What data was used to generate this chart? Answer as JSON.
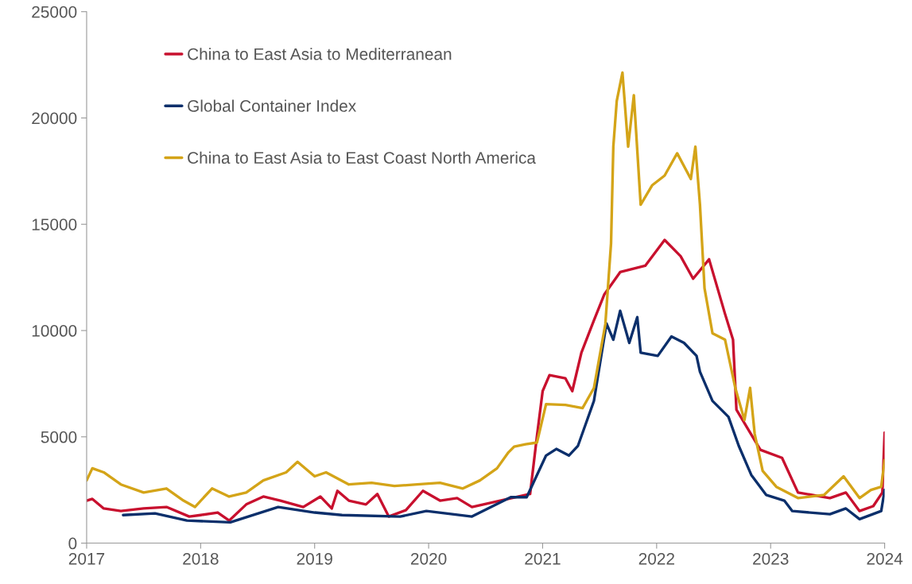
{
  "chart_data": {
    "type": "line",
    "xlim": [
      2017,
      2024
    ],
    "xticks": [
      2017,
      2018,
      2019,
      2020,
      2021,
      2022,
      2023,
      2024
    ],
    "ylim": [
      0,
      25000
    ],
    "yticks": [
      0,
      5000,
      10000,
      15000,
      20000,
      25000
    ],
    "grid": false,
    "legend": "top left",
    "marker": "none",
    "line_style": "solid",
    "series": [
      {
        "name": "China to East Asia to Mediterranean",
        "color": "#c8102e",
        "x": [
          2017.0,
          2017.05,
          2017.15,
          2017.3,
          2017.5,
          2017.7,
          2017.9,
          2018.0,
          2018.15,
          2018.25,
          2018.4,
          2018.55,
          2018.7,
          2018.9,
          2019.05,
          2019.15,
          2019.2,
          2019.3,
          2019.45,
          2019.55,
          2019.65,
          2019.8,
          2019.95,
          2020.1,
          2020.25,
          2020.38,
          2020.89,
          2020.95,
          2021.0,
          2021.06,
          2021.2,
          2021.26,
          2021.34,
          2021.45,
          2021.54,
          2021.68,
          2021.9,
          2022.07,
          2022.21,
          2022.32,
          2022.46,
          2022.6,
          2022.67,
          2022.7,
          2022.91,
          2023.1,
          2023.24,
          2023.52,
          2023.66,
          2023.78,
          2023.9,
          2023.98,
          2024.0
        ],
        "values": [
          2000,
          2080,
          1630,
          1510,
          1630,
          1700,
          1250,
          1320,
          1440,
          1060,
          1820,
          2190,
          2000,
          1700,
          2190,
          1630,
          2460,
          2000,
          1820,
          2310,
          1250,
          1550,
          2460,
          2000,
          2120,
          1700,
          2310,
          5030,
          7150,
          7900,
          7750,
          7150,
          8960,
          10480,
          11690,
          12750,
          13050,
          14260,
          13500,
          12440,
          13350,
          10780,
          9570,
          6280,
          4390,
          4010,
          2380,
          2120,
          2380,
          1510,
          1740,
          2380,
          5200
        ]
      },
      {
        "name": "Global Container Index",
        "color": "#0b2f6b",
        "x": [
          2017.32,
          2017.6,
          2017.88,
          2018.26,
          2018.68,
          2019.0,
          2019.24,
          2019.75,
          2019.98,
          2020.38,
          2020.72,
          2020.86,
          2021.03,
          2021.12,
          2021.23,
          2021.31,
          2021.45,
          2021.56,
          2021.62,
          2021.68,
          2021.76,
          2021.83,
          2021.86,
          2022.01,
          2022.13,
          2022.24,
          2022.35,
          2022.38,
          2022.49,
          2022.63,
          2022.72,
          2022.83,
          2022.96,
          2023.12,
          2023.19,
          2023.52,
          2023.66,
          2023.78,
          2023.97,
          2024.0
        ],
        "values": [
          1320,
          1400,
          1060,
          980,
          1700,
          1440,
          1320,
          1250,
          1510,
          1250,
          2160,
          2160,
          4120,
          4430,
          4120,
          4580,
          6690,
          10330,
          9570,
          10930,
          9420,
          10630,
          8960,
          8810,
          9720,
          9420,
          8810,
          8060,
          6690,
          5940,
          4580,
          3210,
          2270,
          2000,
          1510,
          1360,
          1630,
          1130,
          1510,
          2500
        ]
      },
      {
        "name": "China to East Asia to East Coast North America",
        "color": "#d4a418",
        "x": [
          2017.0,
          2017.05,
          2017.15,
          2017.3,
          2017.5,
          2017.7,
          2017.85,
          2017.95,
          2018.1,
          2018.25,
          2018.4,
          2018.55,
          2018.75,
          2018.85,
          2019.0,
          2019.1,
          2019.3,
          2019.5,
          2019.7,
          2019.9,
          2020.1,
          2020.3,
          2020.45,
          2020.6,
          2020.7,
          2020.75,
          2020.85,
          2020.95,
          2021.03,
          2021.2,
          2021.35,
          2021.45,
          2021.55,
          2021.6,
          2021.62,
          2021.65,
          2021.7,
          2021.75,
          2021.8,
          2021.86,
          2021.96,
          2022.07,
          2022.18,
          2022.3,
          2022.34,
          2022.38,
          2022.42,
          2022.49,
          2022.6,
          2022.69,
          2022.77,
          2022.82,
          2022.86,
          2022.93,
          2023.05,
          2023.24,
          2023.47,
          2023.64,
          2023.78,
          2023.88,
          2023.97,
          2024.0
        ],
        "values": [
          2950,
          3520,
          3330,
          2760,
          2380,
          2570,
          2000,
          1700,
          2570,
          2190,
          2380,
          2950,
          3330,
          3820,
          3140,
          3330,
          2760,
          2840,
          2690,
          2760,
          2840,
          2570,
          2950,
          3520,
          4270,
          4540,
          4650,
          4730,
          6540,
          6500,
          6350,
          7300,
          10300,
          14100,
          18650,
          20800,
          22130,
          18650,
          21070,
          15920,
          16830,
          17290,
          18340,
          17130,
          18650,
          15920,
          11990,
          9870,
          9570,
          7300,
          5790,
          7300,
          5140,
          3400,
          2650,
          2120,
          2270,
          3140,
          2120,
          2500,
          2650,
          3900
        ]
      }
    ]
  }
}
